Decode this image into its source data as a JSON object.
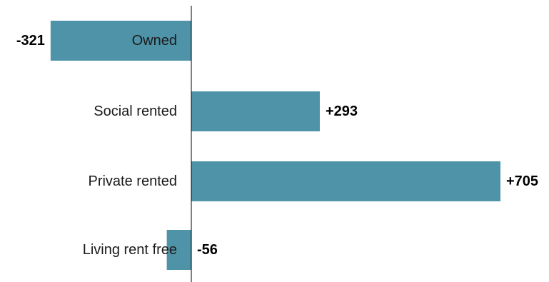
{
  "chart_data": {
    "type": "bar",
    "orientation": "horizontal",
    "categories": [
      "Owned",
      "Social rented",
      "Private rented",
      "Living rent free"
    ],
    "values": [
      -321,
      293,
      705,
      -56
    ],
    "value_labels": [
      "-321",
      "+293",
      "+705",
      "-56"
    ],
    "title": "",
    "xlabel": "",
    "ylabel": "",
    "xlim": [
      -321,
      705
    ],
    "grid": false,
    "legend": "none",
    "colors": {
      "bar": "#4f93a9",
      "axis": "#000000",
      "text": "#1a1a1a",
      "value_text": "#000000"
    }
  }
}
